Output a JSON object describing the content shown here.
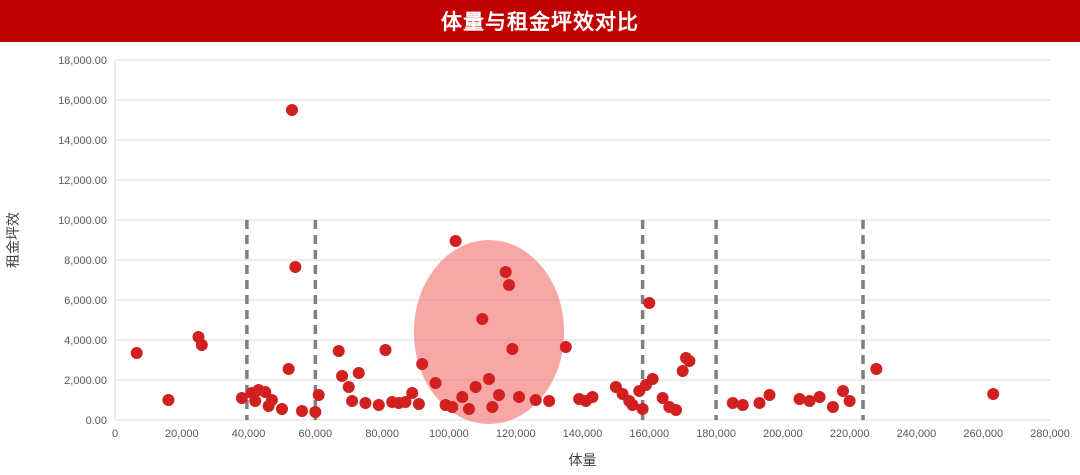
{
  "header": {
    "title": "体量与租金坪效对比",
    "background_color": "#C00000",
    "text_color": "#FFFFFF"
  },
  "chart_data": {
    "type": "scatter",
    "title": "体量与租金坪效对比",
    "xlabel": "体量",
    "ylabel": "租金坪效",
    "xlim": [
      0,
      280000
    ],
    "ylim": [
      0,
      18000
    ],
    "xticks": [
      0,
      20000,
      40000,
      60000,
      80000,
      100000,
      120000,
      140000,
      160000,
      180000,
      200000,
      220000,
      240000,
      260000,
      280000
    ],
    "yticks": [
      0,
      2000,
      4000,
      6000,
      8000,
      10000,
      12000,
      14000,
      16000,
      18000
    ],
    "grid": "horizontal",
    "legend": "none",
    "point_color": "#D21F1F",
    "point_radius": 6,
    "gridline_color": "#D9D9D9",
    "tick_label_color": "#595959",
    "axis_label_color": "#404040",
    "points": [
      [
        6500,
        3350
      ],
      [
        16000,
        1000
      ],
      [
        25000,
        4150
      ],
      [
        26000,
        3750
      ],
      [
        38000,
        1100
      ],
      [
        41000,
        1350
      ],
      [
        42000,
        950
      ],
      [
        43000,
        1500
      ],
      [
        45000,
        1400
      ],
      [
        46000,
        700
      ],
      [
        47000,
        1000
      ],
      [
        50000,
        550
      ],
      [
        52000,
        2550
      ],
      [
        53000,
        15500
      ],
      [
        54000,
        7650
      ],
      [
        56000,
        450
      ],
      [
        60000,
        400
      ],
      [
        61000,
        1250
      ],
      [
        67000,
        3450
      ],
      [
        68000,
        2200
      ],
      [
        70000,
        1650
      ],
      [
        71000,
        950
      ],
      [
        73000,
        2350
      ],
      [
        75000,
        850
      ],
      [
        79000,
        750
      ],
      [
        81000,
        3500
      ],
      [
        83000,
        900
      ],
      [
        85000,
        850
      ],
      [
        87000,
        900
      ],
      [
        89000,
        1350
      ],
      [
        91000,
        800
      ],
      [
        92000,
        2800
      ],
      [
        96000,
        1850
      ],
      [
        99000,
        750
      ],
      [
        101000,
        650
      ],
      [
        102000,
        8950
      ],
      [
        104000,
        1150
      ],
      [
        106000,
        550
      ],
      [
        108000,
        1650
      ],
      [
        110000,
        5050
      ],
      [
        112000,
        2050
      ],
      [
        113000,
        650
      ],
      [
        115000,
        1250
      ],
      [
        117000,
        7400
      ],
      [
        118000,
        6750
      ],
      [
        119000,
        3550
      ],
      [
        121000,
        1150
      ],
      [
        126000,
        1000
      ],
      [
        130000,
        950
      ],
      [
        135000,
        3650
      ],
      [
        139000,
        1050
      ],
      [
        141000,
        950
      ],
      [
        143000,
        1150
      ],
      [
        150000,
        1650
      ],
      [
        152000,
        1300
      ],
      [
        154000,
        950
      ],
      [
        155000,
        750
      ],
      [
        157000,
        1450
      ],
      [
        158000,
        550
      ],
      [
        159000,
        1750
      ],
      [
        160000,
        5850
      ],
      [
        161000,
        2050
      ],
      [
        164000,
        1100
      ],
      [
        166000,
        650
      ],
      [
        168000,
        500
      ],
      [
        170000,
        2450
      ],
      [
        171000,
        3100
      ],
      [
        172000,
        2950
      ],
      [
        185000,
        850
      ],
      [
        188000,
        750
      ],
      [
        193000,
        850
      ],
      [
        196000,
        1250
      ],
      [
        205000,
        1050
      ],
      [
        208000,
        950
      ],
      [
        211000,
        1150
      ],
      [
        215000,
        650
      ],
      [
        218000,
        1450
      ],
      [
        220000,
        950
      ],
      [
        228000,
        2550
      ],
      [
        263000,
        1300
      ]
    ],
    "dashed_lines": {
      "x_positions": [
        39500,
        60000,
        158000,
        180000,
        224000
      ],
      "y_top": 10000,
      "color": "#7F7F7F"
    },
    "highlight_ellipse": {
      "cx": 112000,
      "cy": 4400,
      "rx": 22500,
      "ry": 4600,
      "fill": "#F36C6C",
      "opacity": 0.6
    }
  }
}
